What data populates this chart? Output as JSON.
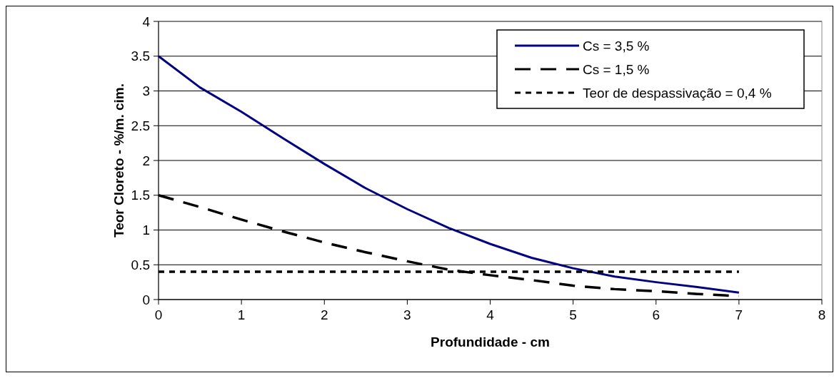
{
  "chart_data": {
    "type": "line",
    "xlabel": "Profundidade - cm",
    "ylabel": "Teor Cloreto - %/m. cim.",
    "x": [
      0,
      0.5,
      1,
      1.5,
      2,
      2.5,
      3,
      3.5,
      4,
      4.5,
      5,
      5.5,
      6,
      6.5,
      7
    ],
    "series": [
      {
        "name": "Cs = 3,5 %",
        "color": "#000080",
        "line_style": "solid",
        "values": [
          3.5,
          3.05,
          2.7,
          2.32,
          1.95,
          1.6,
          1.3,
          1.03,
          0.8,
          0.6,
          0.45,
          0.33,
          0.25,
          0.18,
          0.1
        ]
      },
      {
        "name": "Cs = 1,5 %",
        "color": "#000000",
        "line_style": "dashed",
        "values": [
          1.5,
          1.33,
          1.15,
          0.98,
          0.82,
          0.68,
          0.55,
          0.43,
          0.35,
          0.28,
          0.2,
          0.15,
          0.12,
          0.08,
          0.05
        ]
      },
      {
        "name": "Teor de despassivação = 0,4 %",
        "color": "#000000",
        "line_style": "dotted",
        "values": [
          0.4,
          0.4,
          0.4,
          0.4,
          0.4,
          0.4,
          0.4,
          0.4,
          0.4,
          0.4,
          0.4,
          0.4,
          0.4,
          0.4,
          0.4
        ]
      }
    ],
    "xlim": [
      0,
      8
    ],
    "xticks": [
      0,
      1,
      2,
      3,
      4,
      5,
      6,
      7,
      8
    ],
    "ylim": [
      0,
      4
    ],
    "yticks": [
      0,
      0.5,
      1,
      1.5,
      2,
      2.5,
      3,
      3.5,
      4
    ],
    "grid": "y",
    "legend": "top right",
    "marker": "none"
  }
}
